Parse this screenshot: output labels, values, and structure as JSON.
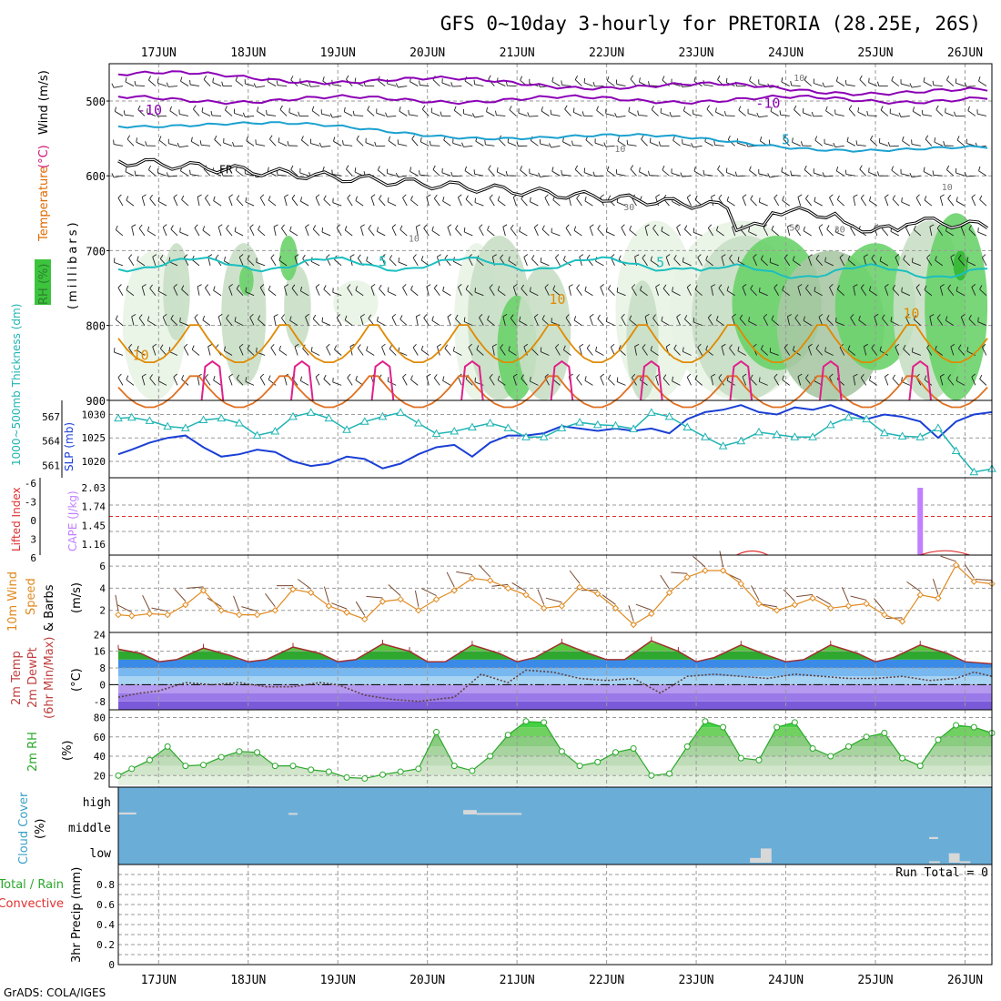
{
  "chart_data": {
    "type": "meteogram",
    "title": "GFS 0~10day 3-hourly for PRETORIA (28.25E, 26S)",
    "footer": "GrADS: COLA/IGES",
    "days": [
      "17JUN",
      "18JUN",
      "19JUN",
      "20JUN",
      "21JUN",
      "22JUN",
      "23JUN",
      "24JUN",
      "25JUN",
      "26JUN"
    ],
    "day_centers": [
      17.0,
      18.0,
      19.0,
      20.0,
      21.0,
      22.0,
      23.0,
      24.0,
      25.0,
      26.0
    ],
    "x_range": [
      16.55,
      26.3
    ],
    "panels": {
      "upper_air": {
        "ylabel_parts": [
          {
            "text": "RH (%)",
            "color": "#2f9e2f"
          },
          {
            "text": "Temperature",
            "color": "#e06a00"
          },
          {
            "text": "(°C)",
            "color": "#d01070"
          },
          {
            "text": "Wind (m/s)",
            "color": "#000000"
          }
        ],
        "ylabel2": "(millibars)",
        "y_ticks": [
          500,
          600,
          700,
          800,
          900
        ],
        "ylim": [
          460,
          900
        ],
        "freezing_label": "FR",
        "contour_labels": [
          {
            "text": "-10",
            "x": 16.9,
            "y": 512,
            "color": "#8b00b5"
          },
          {
            "text": "-10",
            "x": 23.8,
            "y": 503,
            "color": "#8b00b5"
          },
          {
            "text": "5",
            "x": 24.0,
            "y": 552,
            "color": "#1ba1d0"
          },
          {
            "text": "5",
            "x": 19.5,
            "y": 715,
            "color": "#1bbfc0"
          },
          {
            "text": "5",
            "x": 22.6,
            "y": 716,
            "color": "#1bbfc0"
          },
          {
            "text": "10",
            "x": 21.45,
            "y": 765,
            "color": "#e08a00"
          },
          {
            "text": "10",
            "x": 25.4,
            "y": 784,
            "color": "#e08a00"
          },
          {
            "text": "10",
            "x": 16.8,
            "y": 840,
            "color": "#e08a00"
          },
          {
            "text": "30",
            "x": 22.25,
            "y": 640,
            "color": "#777777"
          },
          {
            "text": "30",
            "x": 24.6,
            "y": 670,
            "color": "#777777"
          },
          {
            "text": "10",
            "x": 19.85,
            "y": 682,
            "color": "#777777"
          },
          {
            "text": "50",
            "x": 24.1,
            "y": 667,
            "color": "#777777"
          },
          {
            "text": "10",
            "x": 25.8,
            "y": 613,
            "color": "#777777"
          },
          {
            "text": "10",
            "x": 24.15,
            "y": 467,
            "color": "#777777"
          },
          {
            "text": "10",
            "x": 22.15,
            "y": 562,
            "color": "#777777"
          }
        ],
        "rh_shade_legend": [
          "#e8f3e4",
          "#c9dfc5",
          "#a8c8a4",
          "#6ad36a",
          "#33b833"
        ]
      },
      "slp_thickness": {
        "ylabel_left": "1000~500mb Thickness (dm)",
        "ylabel_right": "SLP (mb)",
        "thickness_ticks": [
          561,
          564,
          567
        ],
        "slp_ticks": [
          1020,
          1025,
          1030
        ],
        "thickness_ylim": [
          559.5,
          569.0
        ],
        "slp_ylim": [
          1016.5,
          1033.0
        ],
        "series": [
          {
            "name": "SLP (mb)",
            "color": "#1a3fd6",
            "x": [
              16.55,
              16.7,
              16.9,
              17.1,
              17.3,
              17.5,
              17.7,
              17.9,
              18.1,
              18.3,
              18.5,
              18.7,
              18.9,
              19.1,
              19.3,
              19.5,
              19.7,
              19.9,
              20.1,
              20.3,
              20.5,
              20.7,
              20.9,
              21.1,
              21.3,
              21.5,
              21.7,
              21.9,
              22.1,
              22.3,
              22.5,
              22.7,
              22.9,
              23.1,
              23.3,
              23.5,
              23.7,
              23.9,
              24.1,
              24.3,
              24.5,
              24.7,
              24.9,
              25.1,
              25.3,
              25.5,
              25.7,
              25.9,
              26.1,
              26.3
            ],
            "y": [
              1021.5,
              1022.5,
              1024.0,
              1025.0,
              1025.5,
              1023.0,
              1021.0,
              1021.5,
              1022.5,
              1022.0,
              1020.0,
              1019.0,
              1019.5,
              1021.0,
              1020.5,
              1018.5,
              1019.5,
              1021.5,
              1023.0,
              1023.5,
              1021.0,
              1024.0,
              1025.5,
              1025.5,
              1026.0,
              1027.5,
              1027.0,
              1026.5,
              1027.0,
              1026.5,
              1027.0,
              1026.0,
              1029.0,
              1030.5,
              1031.0,
              1032.0,
              1030.5,
              1030.0,
              1031.5,
              1031.0,
              1032.0,
              1030.5,
              1029.0,
              1030.0,
              1029.5,
              1028.5,
              1025.0,
              1028.5,
              1030.0,
              1030.5
            ]
          },
          {
            "name": "Thickness (dm)",
            "color": "#20b4b4",
            "x": [
              16.55,
              16.7,
              16.9,
              17.1,
              17.3,
              17.5,
              17.7,
              17.9,
              18.1,
              18.3,
              18.5,
              18.7,
              18.9,
              19.1,
              19.3,
              19.5,
              19.7,
              19.9,
              20.1,
              20.3,
              20.5,
              20.7,
              20.9,
              21.1,
              21.3,
              21.5,
              21.7,
              21.9,
              22.1,
              22.3,
              22.5,
              22.7,
              22.9,
              23.1,
              23.3,
              23.5,
              23.7,
              23.9,
              24.1,
              24.3,
              24.5,
              24.7,
              24.9,
              25.1,
              25.3,
              25.5,
              25.7,
              25.9,
              26.1,
              26.3
            ],
            "y": [
              566.8,
              566.9,
              566.5,
              565.8,
              565.6,
              566.6,
              566.8,
              566.2,
              564.7,
              565.2,
              567.0,
              567.5,
              566.8,
              565.4,
              566.4,
              567.0,
              567.5,
              566.2,
              564.9,
              565.2,
              565.7,
              566.2,
              565.6,
              564.5,
              564.5,
              565.6,
              566.3,
              566.0,
              565.9,
              565.5,
              567.5,
              567.0,
              565.7,
              564.5,
              563.4,
              564.0,
              565.1,
              564.8,
              564.5,
              564.5,
              566.0,
              566.9,
              566.7,
              565.0,
              564.6,
              564.5,
              565.6,
              562.8,
              560.2,
              560.6
            ]
          }
        ]
      },
      "cape_li": {
        "ylabel_left": "Lifted Index",
        "ylabel_right": "CAPE (J/kg)",
        "li_ticks": [
          "-6",
          "-3",
          "0",
          "3",
          "6"
        ],
        "cape_ticks": [
          "2.03",
          "1.74",
          "1.45",
          "1.16"
        ],
        "li_ylim": [
          -6,
          6
        ],
        "cape_bar": {
          "x": 25.5,
          "value": 2.03,
          "color": "#c080ff"
        },
        "li_bumps": [
          {
            "x_start": 23.45,
            "x_end": 23.8,
            "value": 5.3
          },
          {
            "x_start": 25.5,
            "x_end": 26.05,
            "value": 5.2
          }
        ]
      },
      "wind10m": {
        "ylabel_lines": [
          "10m Wind",
          "Speed",
          "& Barbs"
        ],
        "ylabel_unit": "(m/s)",
        "ticks": [
          2,
          4,
          6
        ],
        "ylim": [
          0,
          7
        ],
        "series": {
          "name": "10m Wind Speed",
          "color": "#e08a20",
          "x": [
            16.55,
            16.7,
            16.9,
            17.1,
            17.3,
            17.5,
            17.7,
            17.9,
            18.1,
            18.3,
            18.5,
            18.7,
            18.9,
            19.1,
            19.3,
            19.5,
            19.7,
            19.9,
            20.1,
            20.3,
            20.5,
            20.7,
            20.9,
            21.1,
            21.3,
            21.5,
            21.7,
            21.9,
            22.1,
            22.3,
            22.5,
            22.7,
            22.9,
            23.1,
            23.3,
            23.5,
            23.7,
            23.9,
            24.1,
            24.3,
            24.5,
            24.7,
            24.9,
            25.1,
            25.3,
            25.5,
            25.7,
            25.9,
            26.1,
            26.3
          ],
          "y": [
            1.6,
            1.5,
            1.7,
            1.6,
            2.5,
            3.8,
            2.0,
            1.6,
            1.6,
            2.0,
            3.9,
            3.6,
            2.4,
            1.8,
            1.2,
            2.8,
            3.0,
            2.0,
            3.0,
            3.8,
            4.9,
            4.7,
            4.0,
            3.4,
            2.2,
            2.4,
            4.1,
            3.5,
            2.2,
            0.7,
            1.7,
            3.6,
            5.0,
            5.6,
            5.6,
            4.4,
            2.6,
            2.0,
            2.5,
            3.1,
            2.2,
            2.4,
            2.6,
            1.6,
            1.0,
            3.4,
            3.1,
            6.1,
            4.6,
            4.4
          ]
        }
      },
      "temp2m": {
        "ylabel_lines": [
          "2m Temp",
          "2m DewPt",
          "(6hr Min/Max)"
        ],
        "ylabel_unit": "(°C)",
        "ticks": [
          -8,
          0,
          8,
          16,
          24
        ],
        "ylim": [
          -12,
          25
        ],
        "temp": {
          "x": [
            16.55,
            16.8,
            17.0,
            17.2,
            17.5,
            17.8,
            18.0,
            18.2,
            18.5,
            18.8,
            19.0,
            19.2,
            19.5,
            19.8,
            20.0,
            20.2,
            20.5,
            20.8,
            21.0,
            21.2,
            21.5,
            21.8,
            22.0,
            22.2,
            22.5,
            22.8,
            23.0,
            23.2,
            23.5,
            23.8,
            24.0,
            24.2,
            24.5,
            24.8,
            25.0,
            25.2,
            25.5,
            25.8,
            26.0,
            26.3
          ],
          "y": [
            17,
            15,
            11,
            12,
            17.5,
            14,
            11,
            12,
            18,
            15,
            11,
            12,
            19.5,
            16,
            11,
            11,
            19,
            15,
            11,
            13,
            20,
            15,
            12,
            12,
            21,
            16,
            11,
            13,
            19,
            14,
            11,
            12,
            19,
            15,
            11,
            13,
            19,
            15,
            11,
            10
          ]
        },
        "dewpt": {
          "x": [
            16.55,
            16.8,
            17.0,
            17.3,
            17.6,
            17.9,
            18.2,
            18.5,
            18.8,
            19.0,
            19.3,
            19.6,
            19.9,
            20.1,
            20.3,
            20.6,
            20.9,
            21.1,
            21.4,
            21.7,
            22.0,
            22.3,
            22.6,
            22.9,
            23.2,
            23.5,
            23.8,
            24.1,
            24.4,
            24.7,
            25.0,
            25.3,
            25.6,
            25.9,
            26.1,
            26.3
          ],
          "y": [
            -6,
            -4,
            -3,
            1,
            0,
            1,
            -1,
            -1,
            1,
            0,
            -5,
            -7,
            -8,
            -7,
            -6,
            5,
            1,
            7,
            6,
            3,
            2,
            3,
            -4,
            4,
            5,
            4,
            3,
            5,
            4,
            3,
            3,
            4,
            2,
            3,
            6,
            4
          ]
        }
      },
      "rh2m": {
        "ylabel": "2m RH",
        "ylabel_unit": "(%)",
        "ticks": [
          20,
          40,
          60,
          80
        ],
        "ylim": [
          8,
          88
        ],
        "series": {
          "name": "2m RH",
          "color": "#2aa82a",
          "x": [
            16.55,
            16.7,
            16.9,
            17.1,
            17.3,
            17.5,
            17.7,
            17.9,
            18.1,
            18.3,
            18.5,
            18.7,
            18.9,
            19.1,
            19.3,
            19.5,
            19.7,
            19.9,
            20.1,
            20.3,
            20.5,
            20.7,
            20.9,
            21.1,
            21.3,
            21.5,
            21.7,
            21.9,
            22.1,
            22.3,
            22.5,
            22.7,
            22.9,
            23.1,
            23.3,
            23.5,
            23.7,
            23.9,
            24.1,
            24.3,
            24.5,
            24.7,
            24.9,
            25.1,
            25.3,
            25.5,
            25.7,
            25.9,
            26.1,
            26.3
          ],
          "y": [
            20,
            27,
            36,
            50,
            30,
            31,
            39,
            45,
            44,
            30,
            30,
            26,
            24,
            18,
            17,
            21,
            24,
            27,
            65,
            30,
            25,
            40,
            62,
            76,
            75,
            45,
            30,
            34,
            44,
            48,
            20,
            22,
            50,
            76,
            70,
            38,
            36,
            70,
            75,
            48,
            40,
            50,
            60,
            64,
            38,
            30,
            57,
            72,
            70,
            64
          ]
        }
      },
      "cloud": {
        "ylabel_lines": [
          "Cloud Cover",
          "(%)"
        ],
        "levels": [
          "high",
          "middle",
          "low"
        ],
        "background": "#6aaed8",
        "blocks": [
          {
            "level": "high",
            "x_start": 16.55,
            "x_end": 16.75,
            "value": 8
          },
          {
            "level": "high",
            "x_start": 18.45,
            "x_end": 18.55,
            "value": 6
          },
          {
            "level": "high",
            "x_start": 20.4,
            "x_end": 20.55,
            "value": 18
          },
          {
            "level": "high",
            "x_start": 20.55,
            "x_end": 21.05,
            "value": 6
          },
          {
            "level": "middle",
            "x_start": 25.6,
            "x_end": 25.7,
            "value": 8
          },
          {
            "level": "low",
            "x_start": 23.6,
            "x_end": 23.72,
            "value": 20
          },
          {
            "level": "low",
            "x_start": 23.72,
            "x_end": 23.84,
            "value": 60
          },
          {
            "level": "low",
            "x_start": 25.6,
            "x_end": 25.72,
            "value": 6
          },
          {
            "level": "low",
            "x_start": 25.82,
            "x_end": 25.94,
            "value": 40
          },
          {
            "level": "low",
            "x_start": 25.94,
            "x_end": 26.06,
            "value": 6
          }
        ]
      },
      "precip": {
        "ylabel": "3hr Precip (mm)",
        "legend_lines": [
          {
            "text": "Total / Rain",
            "color": "#2aa82a"
          },
          {
            "text": "Convective",
            "color": "#e03030"
          }
        ],
        "run_total": "Run Total = 0",
        "ticks": [
          "0",
          "0.2",
          "0.4",
          "0.6",
          "0.8"
        ],
        "ylim": [
          0,
          1.0
        ],
        "values": []
      }
    }
  }
}
